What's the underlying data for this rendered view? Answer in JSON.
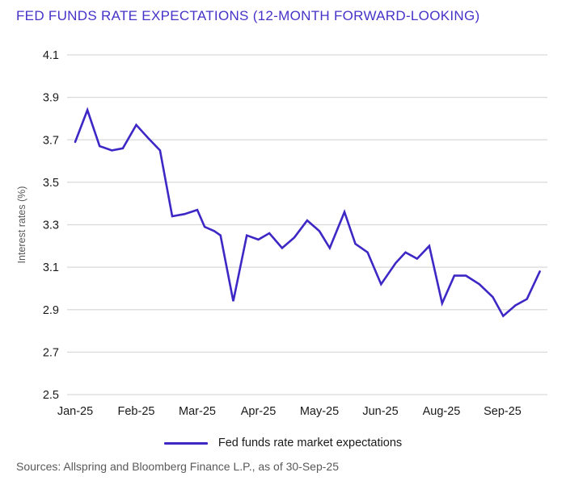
{
  "title": "FED FUNDS RATE EXPECTATIONS (12-MONTH FORWARD-LOOKING)",
  "colors": {
    "accent_title": "#4633C8",
    "line": "#3E28C5",
    "grid": "#D9D9D9",
    "tick_text": "#1A1A1A",
    "muted_text": "#595959",
    "background": "#FFFFFF"
  },
  "chart_data": {
    "type": "line",
    "title": "FED FUNDS RATE EXPECTATIONS (12-MONTH FORWARD-LOOKING)",
    "xlabel": "",
    "ylabel": "Interest rates (%)",
    "ylim": [
      2.5,
      4.1
    ],
    "yticks": [
      4.1,
      3.9,
      3.7,
      3.5,
      3.3,
      3.1,
      2.9,
      2.7,
      2.5
    ],
    "x_tick_labels": [
      "Jan-25",
      "Feb-25",
      "Mar-25",
      "Apr-25",
      "May-25",
      "Jun-25",
      "Aug-25",
      "Sep-25"
    ],
    "grid": "horizontal",
    "legend_position": "bottom-center",
    "series": [
      {
        "name": "Fed funds rate market expectations",
        "x": [
          0.0,
          0.2,
          0.4,
          0.6,
          0.78,
          1.0,
          1.19,
          1.39,
          1.59,
          1.79,
          2.0,
          2.12,
          2.28,
          2.38,
          2.59,
          2.81,
          3.0,
          3.18,
          3.39,
          3.59,
          3.8,
          4.0,
          4.17,
          4.41,
          4.59,
          4.79,
          5.01,
          5.25,
          5.41,
          5.6,
          5.8,
          6.01,
          6.21,
          6.4,
          6.62,
          6.84,
          7.01,
          7.21,
          7.4,
          7.61
        ],
        "values": [
          3.69,
          3.84,
          3.67,
          3.65,
          3.66,
          3.77,
          3.71,
          3.65,
          3.34,
          3.35,
          3.37,
          3.29,
          3.27,
          3.25,
          2.94,
          3.25,
          3.23,
          3.26,
          3.19,
          3.24,
          3.32,
          3.27,
          3.19,
          3.36,
          3.21,
          3.17,
          3.02,
          3.12,
          3.17,
          3.14,
          3.2,
          2.93,
          3.06,
          3.06,
          3.02,
          2.96,
          2.87,
          2.92,
          2.95,
          3.08
        ]
      }
    ]
  },
  "legend": {
    "label": "Fed funds rate market expectations"
  },
  "footer": {
    "sources": "Sources: Allspring and Bloomberg Finance L.P., as of 30-Sep-25"
  }
}
